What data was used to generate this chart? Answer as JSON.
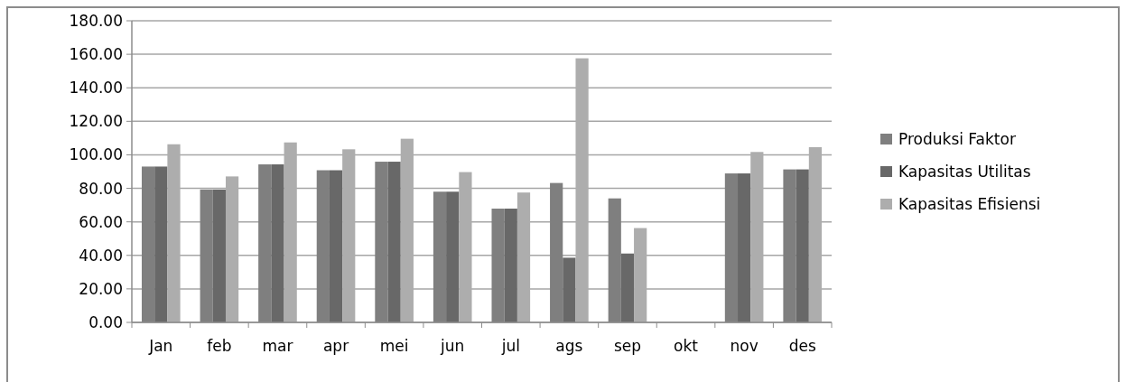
{
  "chart_data": {
    "type": "bar",
    "categories": [
      "Jan",
      "feb",
      "mar",
      "apr",
      "mei",
      "jun",
      "jul",
      "ags",
      "sep",
      "okt",
      "nov",
      "des"
    ],
    "series": [
      {
        "name": "Produksi Faktor",
        "color": "#7f7f7f",
        "values": [
          93.0,
          79.3,
          94.3,
          90.8,
          95.9,
          78.0,
          67.9,
          83.2,
          74.0,
          0,
          88.9,
          91.3
        ]
      },
      {
        "name": "Kapasitas Utilitas",
        "color": "#686868",
        "values": [
          93.0,
          79.3,
          94.3,
          90.8,
          95.9,
          78.0,
          67.9,
          38.6,
          41.1,
          0,
          88.9,
          91.3
        ]
      },
      {
        "name": "Kapasitas Efisiensi",
        "color": "#adadad",
        "values": [
          106.3,
          87.1,
          107.4,
          103.3,
          109.6,
          89.7,
          77.5,
          157.6,
          56.3,
          0,
          101.7,
          104.6
        ]
      }
    ],
    "ylim": [
      0,
      180
    ],
    "yticks": [
      {
        "value": 0,
        "label": "0.00"
      },
      {
        "value": 20,
        "label": "20.00"
      },
      {
        "value": 40,
        "label": "40.00"
      },
      {
        "value": 60,
        "label": "60.00"
      },
      {
        "value": 80,
        "label": "80.00"
      },
      {
        "value": 100,
        "label": "100.00"
      },
      {
        "value": 120,
        "label": "120.00"
      },
      {
        "value": 140,
        "label": "140.00"
      },
      {
        "value": 160,
        "label": "160.00"
      },
      {
        "value": 180,
        "label": "180.00"
      }
    ],
    "grid": "y",
    "legend": "right"
  }
}
